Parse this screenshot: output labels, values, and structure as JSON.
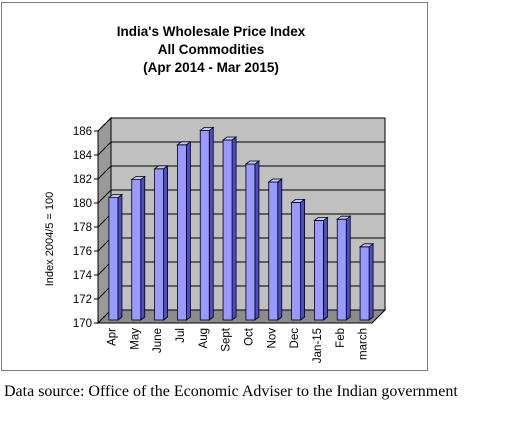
{
  "chart_data": {
    "type": "bar",
    "title_lines": [
      "India's  Wholesale Price Index",
      "All Commodities",
      "(Apr 2014  - Mar 2015)"
    ],
    "ylabel": "Index  2004/5 = 100",
    "xlabel": "",
    "categories": [
      "Apr",
      "May",
      "June",
      "Jul",
      "Aug",
      "Sept",
      "Oct",
      "Nov",
      "Dec",
      "Jan-15",
      "Feb",
      "march"
    ],
    "values": [
      180.2,
      181.7,
      182.6,
      184.6,
      185.8,
      185.0,
      183.0,
      181.5,
      179.8,
      178.3,
      178.4,
      176.1
    ],
    "ylim": [
      170,
      186
    ],
    "yticks": [
      170,
      172,
      174,
      176,
      178,
      180,
      182,
      184,
      186
    ],
    "grid": true,
    "bar_color": "#9999ff",
    "wall_color": "#c0c0c0",
    "legend": "none"
  },
  "source_note": "Data source: Office of the Economic Adviser to the Indian government"
}
